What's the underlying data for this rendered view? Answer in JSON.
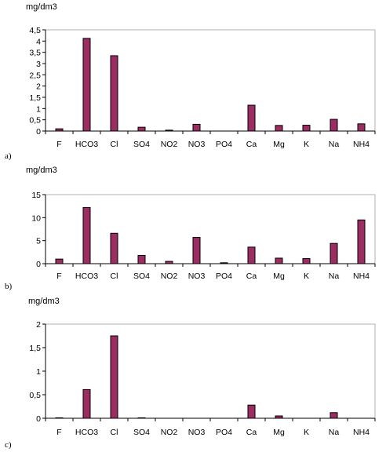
{
  "chart_data": [
    {
      "type": "bar",
      "panel_label": "a)",
      "ylabel": "mg/dm3",
      "categories": [
        "F",
        "HCO3",
        "Cl",
        "SO4",
        "NO2",
        "NO3",
        "PO4",
        "Ca",
        "Mg",
        "K",
        "Na",
        "NH4"
      ],
      "values": [
        0.1,
        4.12,
        3.35,
        0.17,
        0.04,
        0.3,
        0,
        1.15,
        0.25,
        0.26,
        0.52,
        0.32
      ],
      "ylim": [
        0,
        4.5
      ],
      "yticks": [
        "0",
        "0,5",
        "1",
        "1,5",
        "2",
        "2,5",
        "3",
        "3,5",
        "4",
        "4,5"
      ],
      "bar_color": "#9b2d62",
      "grid": false,
      "legend": "none"
    },
    {
      "type": "bar",
      "panel_label": "b)",
      "ylabel": "mg/dm3",
      "categories": [
        "F",
        "HCO3",
        "Cl",
        "SO4",
        "NO2",
        "NO3",
        "PO4",
        "Ca",
        "Mg",
        "K",
        "Na",
        "NH4"
      ],
      "values": [
        1.0,
        12.2,
        6.6,
        1.8,
        0.5,
        5.7,
        0.2,
        3.6,
        1.2,
        1.1,
        4.4,
        9.5
      ],
      "ylim": [
        0,
        15
      ],
      "yticks": [
        "0",
        "5",
        "10",
        "15"
      ],
      "bar_color": "#9b2d62",
      "grid": false,
      "legend": "none"
    },
    {
      "type": "bar",
      "panel_label": "c)",
      "ylabel": "mg/dm3",
      "categories": [
        "F",
        "HCO3",
        "Cl",
        "SO4",
        "NO2",
        "NO3",
        "PO4",
        "Ca",
        "Mg",
        "K",
        "Na",
        "NH4"
      ],
      "values": [
        0.01,
        0.61,
        1.75,
        0.01,
        0,
        0,
        0,
        0.28,
        0.05,
        0,
        0.12,
        0
      ],
      "ylim": [
        0,
        2
      ],
      "yticks": [
        "0",
        "0,5",
        "1",
        "1,5",
        "2"
      ],
      "bar_color": "#9b2d62",
      "grid": false,
      "legend": "none"
    }
  ]
}
